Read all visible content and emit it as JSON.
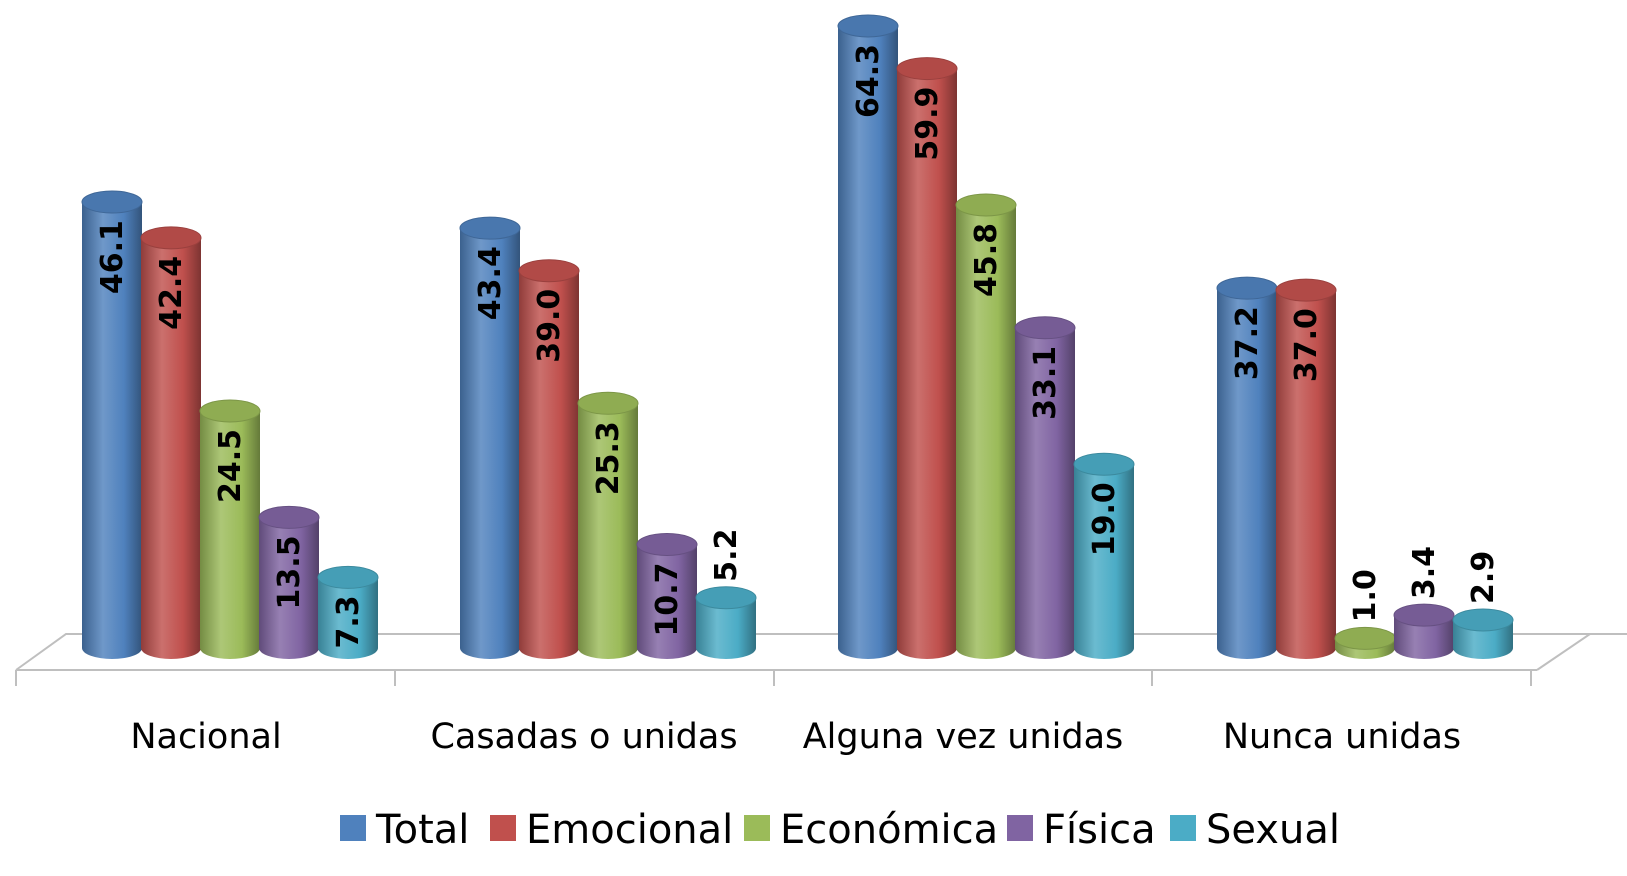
{
  "chart_data": {
    "type": "bar",
    "style": "3d-cylinder",
    "categories": [
      "Nacional",
      "Casadas o unidas",
      "Alguna vez unidas",
      "Nunca unidas"
    ],
    "series": [
      {
        "name": "Total",
        "color": "#4F81BD",
        "values": [
          46.1,
          43.4,
          64.3,
          37.2
        ]
      },
      {
        "name": "Emocional",
        "color": "#C0504D",
        "values": [
          42.4,
          39.0,
          59.9,
          37.0
        ]
      },
      {
        "name": "Económica",
        "color": "#9BBB59",
        "values": [
          24.5,
          25.3,
          45.8,
          1.0
        ]
      },
      {
        "name": "Física",
        "color": "#8064A2",
        "values": [
          13.5,
          10.7,
          33.1,
          3.4
        ]
      },
      {
        "name": "Sexual",
        "color": "#4BACC6",
        "values": [
          7.3,
          5.2,
          19.0,
          2.9
        ]
      }
    ],
    "value_labels": [
      [
        "46.1",
        "43.4",
        "64.3",
        "37.2"
      ],
      [
        "42.4",
        "39.0",
        "59.9",
        "37.0"
      ],
      [
        "24.5",
        "25.3",
        "45.8",
        "1.0"
      ],
      [
        "13.5",
        "10.7",
        "33.1",
        "3.4"
      ],
      [
        "7.3",
        "5.2",
        "19.0",
        "2.9"
      ]
    ],
    "title": "",
    "xlabel": "",
    "ylabel": "",
    "ylim": [
      0,
      70
    ],
    "grid": false,
    "legend_position": "bottom"
  }
}
